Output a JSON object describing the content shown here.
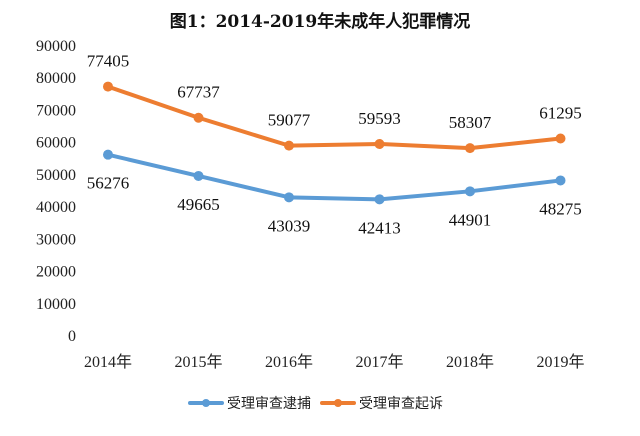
{
  "chart_data": {
    "type": "line",
    "title": "图1：2014-2019年未成年人犯罪情况",
    "categories": [
      "2014年",
      "2015年",
      "2016年",
      "2017年",
      "2018年",
      "2019年"
    ],
    "ylim": [
      0,
      90000
    ],
    "yticks": [
      0,
      10000,
      20000,
      30000,
      40000,
      50000,
      60000,
      70000,
      80000,
      90000
    ],
    "grid": false,
    "legend_position": "bottom",
    "series": [
      {
        "name": "受理审查逮捕",
        "color": "#5b9bd5",
        "values": [
          56276,
          49665,
          43039,
          42413,
          44901,
          48275
        ]
      },
      {
        "name": "受理审查起诉",
        "color": "#ed7d31",
        "values": [
          77405,
          67737,
          59077,
          59593,
          58307,
          61295
        ]
      }
    ]
  }
}
